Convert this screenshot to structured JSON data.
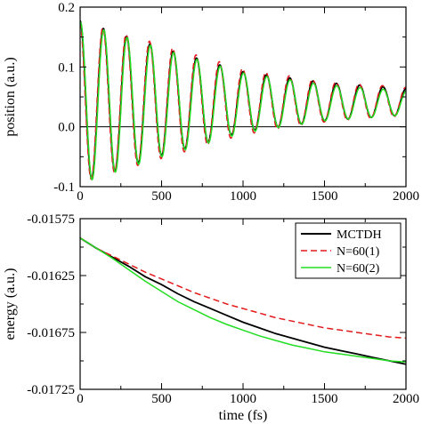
{
  "chart_data": [
    {
      "type": "line",
      "xlabel": "",
      "ylabel": "position (a.u.)",
      "xlim": [
        0,
        2000
      ],
      "ylim": [
        -0.1,
        0.2
      ],
      "xticks": [
        0,
        500,
        1000,
        1500,
        2000
      ],
      "xtick_labels": [
        "0",
        "500",
        "1000",
        "1500",
        "2000"
      ],
      "yticks": [
        -0.1,
        0.0,
        0.1,
        0.2
      ],
      "ytick_labels": [
        "-0.1",
        "0.0",
        "0.1",
        "0.2"
      ],
      "zero_line": true,
      "grid": false,
      "series": [
        {
          "color": "#000000",
          "style": "solid",
          "baseline": 0.042,
          "amplitude": [
            [
              0,
              0.135
            ],
            [
              500,
              0.09
            ],
            [
              1000,
              0.05
            ],
            [
              1500,
              0.032
            ],
            [
              2000,
              0.022
            ]
          ],
          "period": 143,
          "phase": 0.0
        },
        {
          "color": "#e31a1c",
          "style": "dashed",
          "baseline": 0.042,
          "amplitude": [
            [
              0,
              0.135
            ],
            [
              500,
              0.095
            ],
            [
              1000,
              0.055
            ],
            [
              1500,
              0.034
            ],
            [
              2000,
              0.024
            ]
          ],
          "period": 143,
          "phase": 0.15
        },
        {
          "color": "#22dd22",
          "style": "solid",
          "baseline": 0.04,
          "amplitude": [
            [
              0,
              0.135
            ],
            [
              500,
              0.09
            ],
            [
              1000,
              0.05
            ],
            [
              1500,
              0.03
            ],
            [
              2000,
              0.02
            ]
          ],
          "period": 143,
          "phase": -0.1
        }
      ]
    },
    {
      "type": "line",
      "xlabel": "time (fs)",
      "ylabel": "energy (a.u.)",
      "xlim": [
        0,
        2000
      ],
      "ylim": [
        -0.01725,
        -0.01575
      ],
      "xticks": [
        0,
        500,
        1000,
        1500,
        2000
      ],
      "xtick_labels": [
        "0",
        "500",
        "1000",
        "1500",
        "2000"
      ],
      "yticks": [
        -0.01725,
        -0.01675,
        -0.01625,
        -0.01575
      ],
      "ytick_labels": [
        "-0.01725",
        "-0.01675",
        "-0.01625",
        "-0.01575"
      ],
      "legend": "top-right",
      "grid": false,
      "series": [
        {
          "name": "MCTDH",
          "color": "#000000",
          "style": "solid",
          "x": [
            0,
            100,
            200,
            300,
            400,
            500,
            600,
            700,
            800,
            900,
            1000,
            1100,
            1200,
            1300,
            1400,
            1500,
            1600,
            1700,
            1800,
            1900,
            2000
          ],
          "y": [
            -0.01592,
            -0.01601,
            -0.01609,
            -0.01617,
            -0.01626,
            -0.01633,
            -0.01641,
            -0.01648,
            -0.01654,
            -0.0166,
            -0.01666,
            -0.01671,
            -0.01676,
            -0.0168,
            -0.01684,
            -0.01688,
            -0.01691,
            -0.01694,
            -0.01697,
            -0.017,
            -0.01703
          ]
        },
        {
          "name": "N=60(1)",
          "color": "#e31a1c",
          "style": "dashed",
          "x": [
            0,
            100,
            200,
            300,
            400,
            500,
            600,
            700,
            800,
            900,
            1000,
            1100,
            1200,
            1300,
            1400,
            1500,
            1600,
            1700,
            1800,
            1900,
            2000
          ],
          "y": [
            -0.01592,
            -0.01601,
            -0.01608,
            -0.01615,
            -0.01622,
            -0.01628,
            -0.01634,
            -0.0164,
            -0.01645,
            -0.0165,
            -0.01654,
            -0.01658,
            -0.01662,
            -0.01665,
            -0.01668,
            -0.01671,
            -0.01673,
            -0.01675,
            -0.01677,
            -0.01679,
            -0.0168
          ]
        },
        {
          "name": "N=60(2)",
          "color": "#22dd22",
          "style": "solid",
          "x": [
            0,
            100,
            200,
            300,
            400,
            500,
            600,
            700,
            800,
            900,
            1000,
            1100,
            1200,
            1300,
            1400,
            1500,
            1600,
            1700,
            1800,
            1900,
            2000
          ],
          "y": [
            -0.01592,
            -0.01601,
            -0.0161,
            -0.0162,
            -0.0163,
            -0.01639,
            -0.01648,
            -0.01655,
            -0.01662,
            -0.01668,
            -0.01673,
            -0.01678,
            -0.01682,
            -0.01686,
            -0.01689,
            -0.01692,
            -0.01694,
            -0.01696,
            -0.01698,
            -0.017,
            -0.01701
          ]
        }
      ]
    }
  ]
}
